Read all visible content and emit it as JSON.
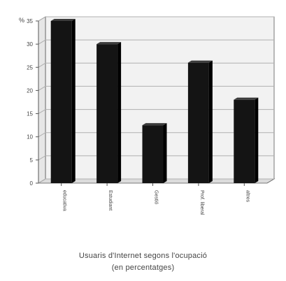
{
  "chart_data": {
    "type": "bar",
    "y_unit_label": "%",
    "categories": [
      "educativa",
      "Estudiant",
      "Gestió",
      "Prof. liberal",
      "altres"
    ],
    "values": [
      35,
      30,
      12.5,
      26,
      18
    ],
    "yticks": [
      0,
      5,
      10,
      15,
      20,
      25,
      30,
      35
    ],
    "ylim": [
      0,
      35
    ],
    "grid": true,
    "title_line_1": "Usuaris d'Internet segons l'ocupació",
    "title_line_2": "(en percentatges)",
    "colors": {
      "bar": "#141414",
      "bar_side": "#000000",
      "bar_top": "#3c3c3c",
      "grid": "#b0b0b0",
      "wall": "#f2f2f2",
      "axis": "#555555",
      "text": "#444444"
    }
  }
}
